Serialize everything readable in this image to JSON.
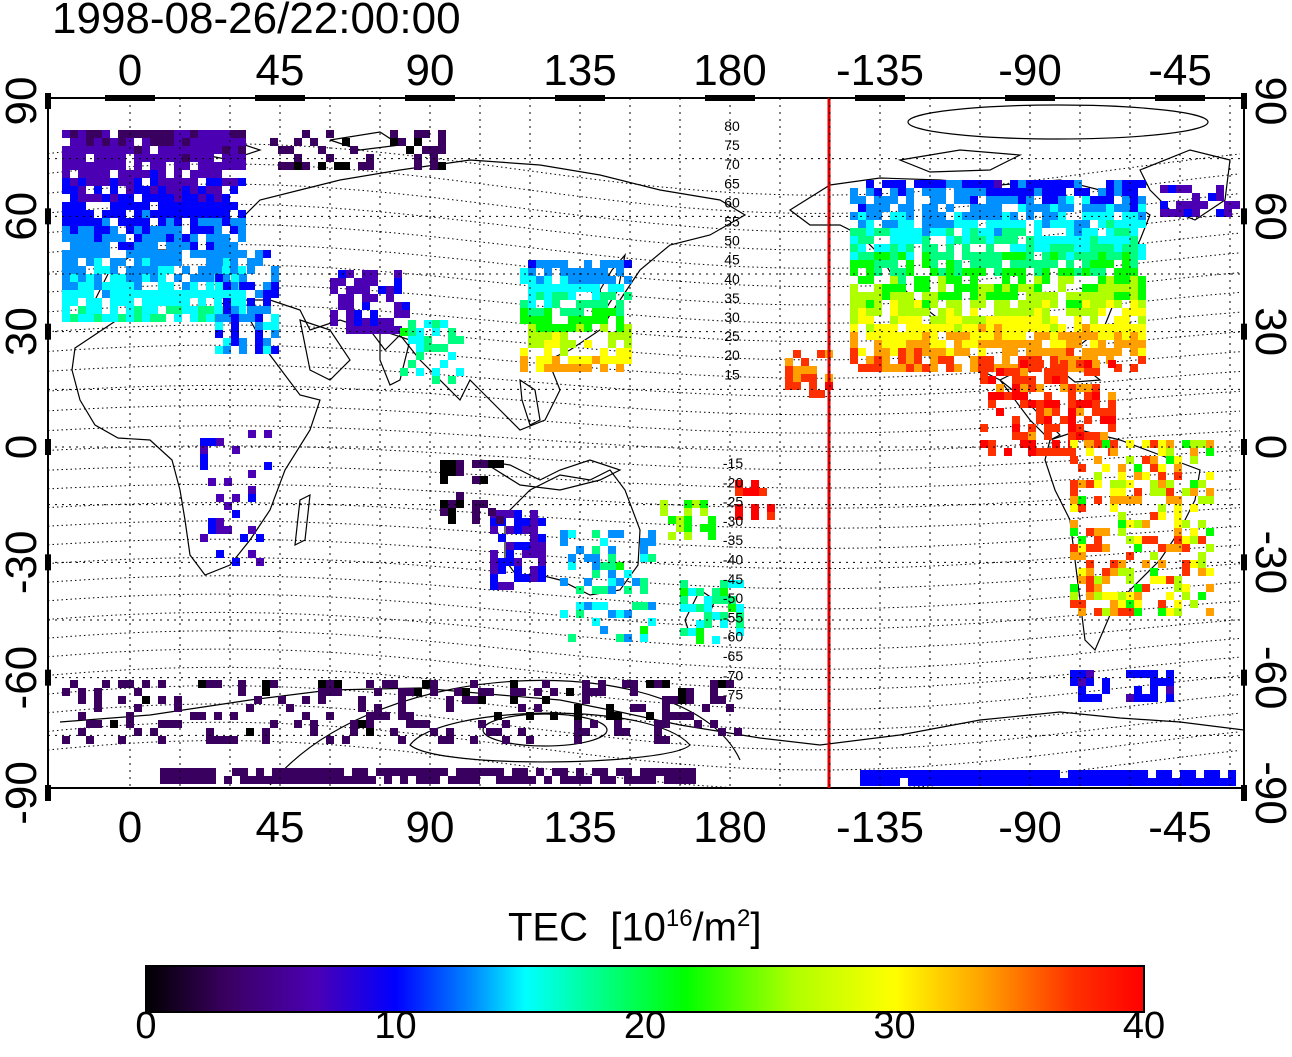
{
  "timestamp": "1998-08-26/22:00:00",
  "map": {
    "top_ticks": [
      "0",
      "45",
      "90",
      "135",
      "180",
      "-135",
      "-90",
      "-45"
    ],
    "bottom_ticks": [
      "0",
      "45",
      "90",
      "135",
      "180",
      "-135",
      "-90",
      "-45"
    ],
    "left_ticks": [
      "90",
      "60",
      "30",
      "0",
      "-30",
      "-60",
      "-90"
    ],
    "right_ticks": [
      "90",
      "60",
      "30",
      "0",
      "-30",
      "-60",
      "-90"
    ],
    "contour_labels_north": [
      "80",
      "75",
      "70",
      "65",
      "60",
      "55",
      "50",
      "45",
      "40",
      "35",
      "30",
      "25",
      "20",
      "15"
    ],
    "contour_labels_south": [
      "-15",
      "-20",
      "-25",
      "-30",
      "-35",
      "-40",
      "-45",
      "-50",
      "-55",
      "-60",
      "-65",
      "-70",
      "-75"
    ],
    "terminator_color": "#e00000"
  },
  "colorbar": {
    "title": "TEC",
    "unit_base": "[10",
    "unit_exp": "16",
    "unit_mid": "/m",
    "unit_exp2": "2",
    "unit_end": "]",
    "ticks": [
      "0",
      "10",
      "20",
      "30",
      "40"
    ],
    "min": 0,
    "max": 40,
    "colors": [
      "#000000",
      "#3a0060",
      "#4b00b4",
      "#0000ff",
      "#0090ff",
      "#00ffff",
      "#00ff80",
      "#00ff00",
      "#b0ff00",
      "#ffff00",
      "#ffa000",
      "#ff3000",
      "#ff0000"
    ]
  }
}
